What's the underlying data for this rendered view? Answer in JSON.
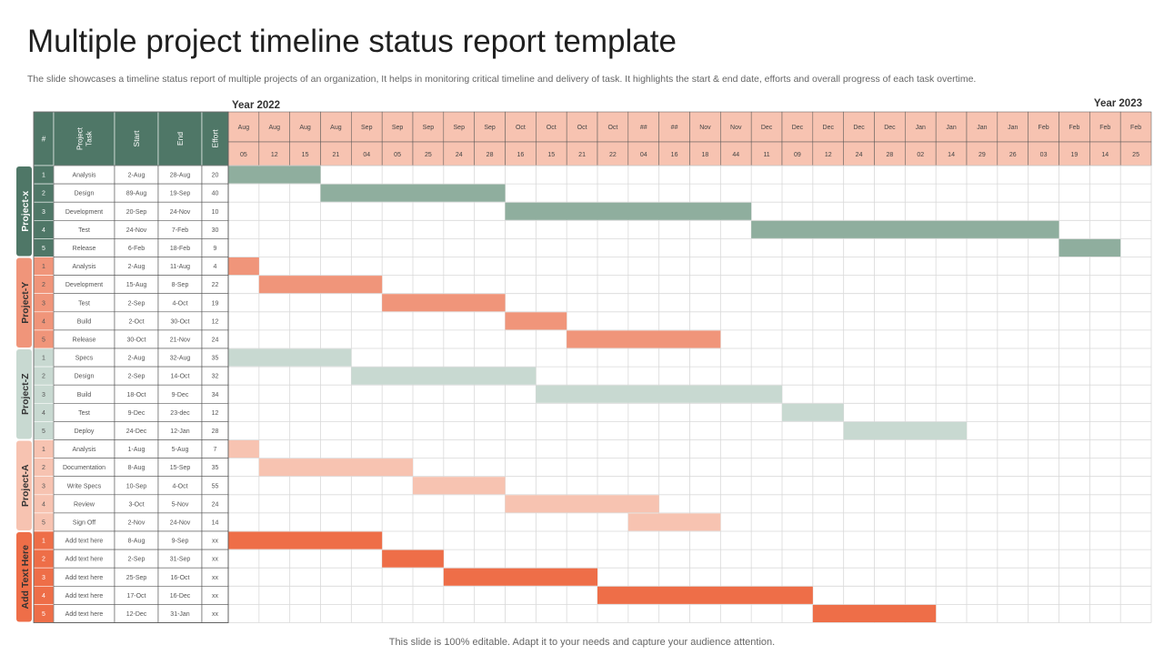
{
  "slide": {
    "title": "Multiple project timeline status report template",
    "subtitle": "The slide showcases a timeline status report of multiple projects of an organization, It helps in monitoring critical timeline and delivery of task. It highlights the start & end date, efforts and overall progress of each task overtime.",
    "footer": "This slide is 100% editable. Adapt it to your needs and capture your audience attention."
  },
  "chart_data": {
    "type": "gantt",
    "year_labels": {
      "left": "Year 2022",
      "right": "Year 2023"
    },
    "columns": {
      "number": "#",
      "task": "Project Task",
      "start": "Start",
      "end": "End",
      "effort": "Effort"
    },
    "timeline_months": [
      "Aug",
      "Aug",
      "Aug",
      "Aug",
      "Sep",
      "Sep",
      "Sep",
      "Sep",
      "Sep",
      "Oct",
      "Oct",
      "Oct",
      "Oct",
      "##",
      "##",
      "Nov",
      "Nov",
      "Dec",
      "Dec",
      "Dec",
      "Dec",
      "Dec",
      "Jan",
      "Jan",
      "Jan",
      "Jan",
      "Feb",
      "Feb",
      "Feb",
      "Feb"
    ],
    "timeline_days": [
      "05",
      "12",
      "15",
      "21",
      "04",
      "05",
      "25",
      "24",
      "28",
      "16",
      "15",
      "21",
      "22",
      "04",
      "16",
      "18",
      "44",
      "11",
      "09",
      "12",
      "24",
      "28",
      "02",
      "14",
      "29",
      "26",
      "03",
      "19",
      "14",
      "25"
    ],
    "colors": {
      "header_dark": "#4f7767",
      "header_light": "#f7c3b1",
      "grid": "#d9d9d9",
      "border": "#555555"
    },
    "projects": [
      {
        "name": "Project-x",
        "color": "#4f7767",
        "bar_color": "#8fae9e",
        "tasks": [
          {
            "n": "1",
            "task": "Analysis",
            "start": "2-Aug",
            "end": "28-Aug",
            "effort": "20",
            "bar_start": 0,
            "bar_end": 3
          },
          {
            "n": "2",
            "task": "Design",
            "start": "89-Aug",
            "end": "19-Sep",
            "effort": "40",
            "bar_start": 3,
            "bar_end": 9
          },
          {
            "n": "3",
            "task": "Development",
            "start": "20-Sep",
            "end": "24-Nov",
            "effort": "10",
            "bar_start": 9,
            "bar_end": 17
          },
          {
            "n": "4",
            "task": "Test",
            "start": "24-Nov",
            "end": "7-Feb",
            "effort": "30",
            "bar_start": 17,
            "bar_end": 27
          },
          {
            "n": "5",
            "task": "Release",
            "start": "6-Feb",
            "end": "18-Feb",
            "effort": "9",
            "bar_start": 27,
            "bar_end": 29
          }
        ]
      },
      {
        "name": "Project-Y",
        "color": "#f0957a",
        "bar_color": "#f0957a",
        "tasks": [
          {
            "n": "1",
            "task": "Analysis",
            "start": "2-Aug",
            "end": "11-Aug",
            "effort": "4",
            "bar_start": 0,
            "bar_end": 1
          },
          {
            "n": "2",
            "task": "Development",
            "start": "15-Aug",
            "end": "8-Sep",
            "effort": "22",
            "bar_start": 1,
            "bar_end": 5
          },
          {
            "n": "3",
            "task": "Test",
            "start": "2-Sep",
            "end": "4-Oct",
            "effort": "19",
            "bar_start": 5,
            "bar_end": 9
          },
          {
            "n": "4",
            "task": "Build",
            "start": "2-Oct",
            "end": "30-Oct",
            "effort": "12",
            "bar_start": 9,
            "bar_end": 11
          },
          {
            "n": "5",
            "task": "Release",
            "start": "30-Oct",
            "end": "21-Nov",
            "effort": "24",
            "bar_start": 11,
            "bar_end": 16
          }
        ]
      },
      {
        "name": "Project-Z",
        "color": "#c8d9d1",
        "bar_color": "#c8d9d1",
        "tasks": [
          {
            "n": "1",
            "task": "Specs",
            "start": "2-Aug",
            "end": "32-Aug",
            "effort": "35",
            "bar_start": 0,
            "bar_end": 4
          },
          {
            "n": "2",
            "task": "Design",
            "start": "2-Sep",
            "end": "14-Oct",
            "effort": "32",
            "bar_start": 4,
            "bar_end": 10
          },
          {
            "n": "3",
            "task": "Build",
            "start": "18-Oct",
            "end": "9-Dec",
            "effort": "34",
            "bar_start": 10,
            "bar_end": 18
          },
          {
            "n": "4",
            "task": "Test",
            "start": "9-Dec",
            "end": "23-dec",
            "effort": "12",
            "bar_start": 18,
            "bar_end": 20
          },
          {
            "n": "5",
            "task": "Deploy",
            "start": "24-Dec",
            "end": "12-Jan",
            "effort": "28",
            "bar_start": 20,
            "bar_end": 24
          }
        ]
      },
      {
        "name": "Project-A",
        "color": "#f7c3b1",
        "bar_color": "#f7c3b1",
        "tasks": [
          {
            "n": "1",
            "task": "Analysis",
            "start": "1-Aug",
            "end": "5-Aug",
            "effort": "7",
            "bar_start": 0,
            "bar_end": 1
          },
          {
            "n": "2",
            "task": "Documentation",
            "start": "8-Aug",
            "end": "15-Sep",
            "effort": "35",
            "bar_start": 1,
            "bar_end": 6
          },
          {
            "n": "3",
            "task": "Write Specs",
            "start": "10-Sep",
            "end": "4-Oct",
            "effort": "55",
            "bar_start": 6,
            "bar_end": 9
          },
          {
            "n": "4",
            "task": "Review",
            "start": "3-Oct",
            "end": "5-Nov",
            "effort": "24",
            "bar_start": 9,
            "bar_end": 14
          },
          {
            "n": "5",
            "task": "Sign Off",
            "start": "2-Nov",
            "end": "24-Nov",
            "effort": "14",
            "bar_start": 13,
            "bar_end": 16
          }
        ]
      },
      {
        "name": "Add Text Here",
        "color": "#ee6e48",
        "bar_color": "#ee6e48",
        "tasks": [
          {
            "n": "1",
            "task": "Add text here",
            "start": "8-Aug",
            "end": "9-Sep",
            "effort": "xx",
            "bar_start": 0,
            "bar_end": 5
          },
          {
            "n": "2",
            "task": "Add text here",
            "start": "2-Sep",
            "end": "31-Sep",
            "effort": "xx",
            "bar_start": 5,
            "bar_end": 7
          },
          {
            "n": "3",
            "task": "Add text here",
            "start": "25-Sep",
            "end": "16-Oct",
            "effort": "xx",
            "bar_start": 7,
            "bar_end": 12
          },
          {
            "n": "4",
            "task": "Add text here",
            "start": "17-Oct",
            "end": "16-Dec",
            "effort": "xx",
            "bar_start": 12,
            "bar_end": 19
          },
          {
            "n": "5",
            "task": "Add text here",
            "start": "12-Dec",
            "end": "31-Jan",
            "effort": "xx",
            "bar_start": 19,
            "bar_end": 23
          }
        ]
      }
    ]
  }
}
